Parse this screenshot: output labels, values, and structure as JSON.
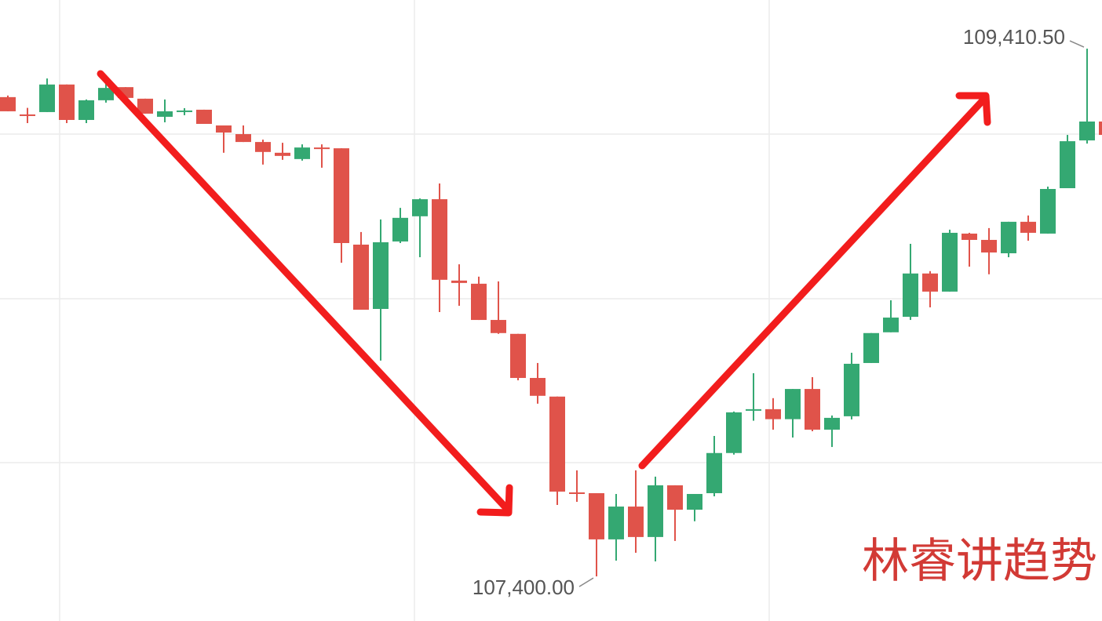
{
  "chart_data": {
    "type": "candlestick",
    "up_color": "#34a872",
    "down_color": "#e0534a",
    "ylim": [
      107230,
      109596
    ],
    "open": [
      109226,
      109160,
      109169,
      109274,
      109139,
      109214,
      109264,
      109220,
      109151,
      109172,
      109178,
      109118,
      109085,
      109055,
      109014,
      108990,
      109034,
      109031,
      108664,
      108419,
      108676,
      108772,
      108837,
      108527,
      108515,
      108377,
      108324,
      108156,
      108085,
      107720,
      107717,
      107541,
      107666,
      107550,
      107747,
      107654,
      107717,
      107870,
      108031,
      108037,
      107999,
      108114,
      107959,
      108010,
      108213,
      108330,
      108389,
      108554,
      108485,
      108706,
      108682,
      108631,
      108751,
      108706,
      108879,
      109061,
      109133
    ],
    "high": [
      109232,
      109185,
      109297,
      109274,
      109217,
      109285,
      109264,
      109220,
      109217,
      109184,
      109178,
      109118,
      109118,
      109064,
      109052,
      109046,
      109046,
      109031,
      108712,
      108760,
      108804,
      108840,
      108897,
      108589,
      108542,
      108524,
      108324,
      108213,
      108085,
      107804,
      107717,
      107714,
      107804,
      107780,
      107747,
      107714,
      107935,
      108028,
      108174,
      108079,
      108114,
      108159,
      108013,
      108252,
      108327,
      108452,
      108667,
      108563,
      108721,
      108709,
      108727,
      108751,
      108775,
      108885,
      109082,
      109410.5,
      109148
    ],
    "low": [
      109172,
      109127,
      109169,
      109127,
      109127,
      109205,
      109220,
      109163,
      109130,
      109157,
      109124,
      109014,
      109055,
      108969,
      108987,
      108984,
      108957,
      108595,
      108416,
      108222,
      108670,
      108616,
      108407,
      108431,
      108377,
      108324,
      108147,
      108058,
      107672,
      107684,
      107400,
      107460,
      107490,
      107457,
      107535,
      107610,
      107705,
      107864,
      107993,
      107959,
      107929,
      107953,
      107893,
      107998,
      108213,
      108330,
      108377,
      108425,
      108485,
      108580,
      108551,
      108616,
      108679,
      108706,
      108879,
      109049,
      109073
    ],
    "close": [
      109172,
      109154,
      109274,
      109139,
      109214,
      109261,
      109223,
      109163,
      109172,
      109175,
      109124,
      109091,
      109055,
      109017,
      109002,
      109034,
      109031,
      108670,
      108416,
      108673,
      108766,
      108837,
      108530,
      108518,
      108377,
      108327,
      108156,
      108088,
      107723,
      107714,
      107541,
      107666,
      107550,
      107747,
      107654,
      107714,
      107870,
      108025,
      108037,
      107999,
      108114,
      107959,
      108004,
      108210,
      108327,
      108386,
      108554,
      108485,
      108709,
      108682,
      108634,
      108751,
      108709,
      108876,
      109058,
      109133,
      109082
    ],
    "annotations": [
      {
        "value": 109410.5,
        "label": "109,410.50"
      },
      {
        "value": 107400,
        "label": "107,400.00"
      }
    ],
    "watermark": "林睿讲趋势"
  }
}
